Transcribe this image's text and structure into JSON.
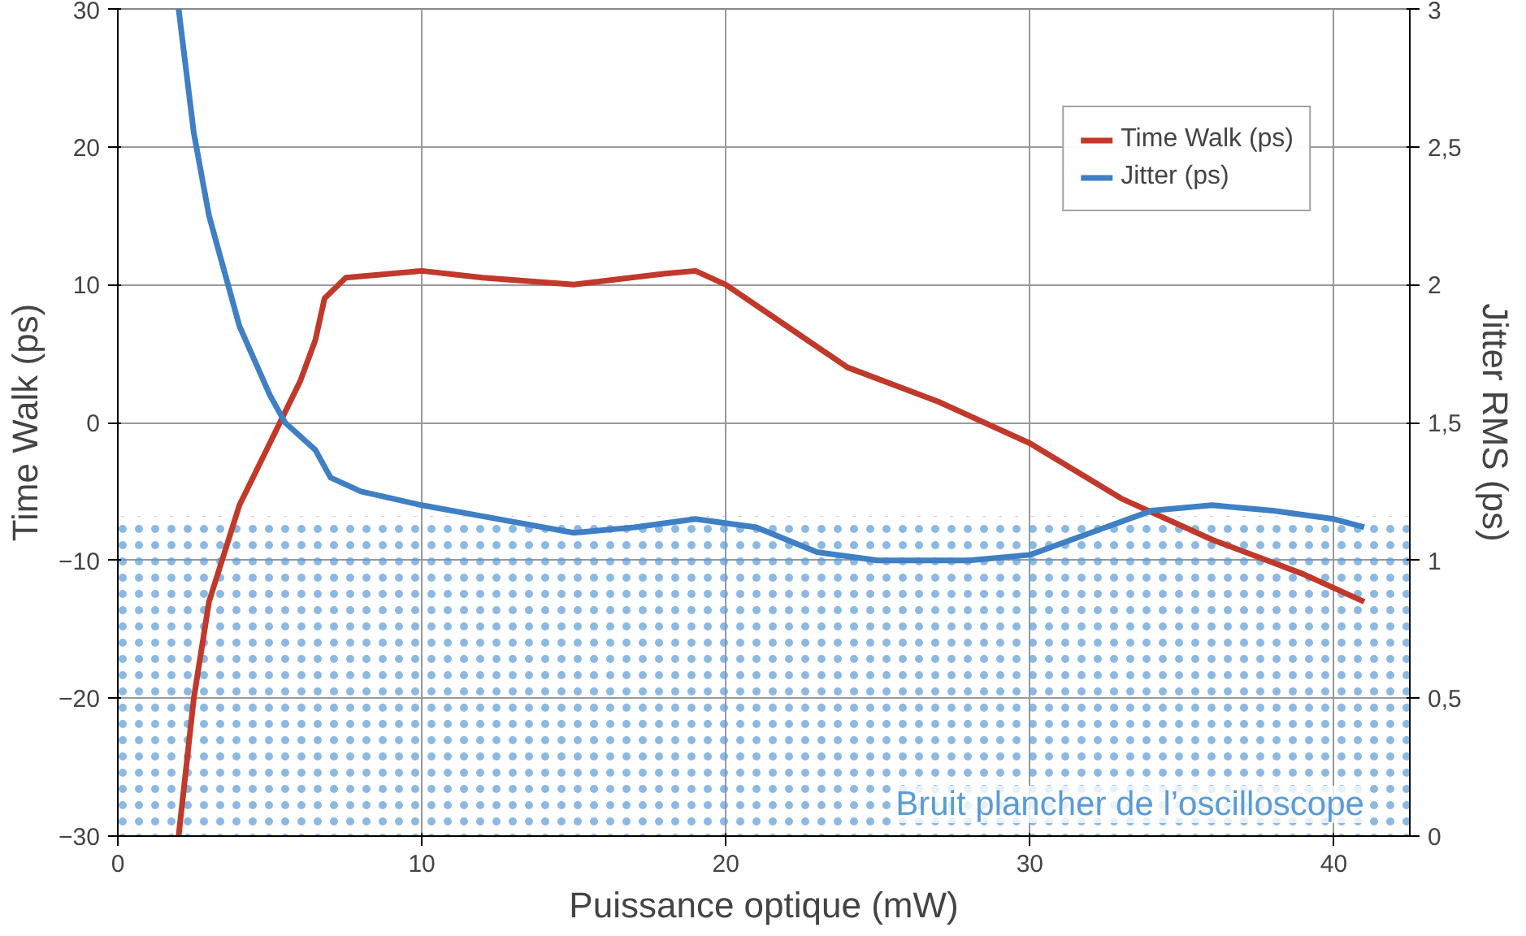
{
  "chart_data": {
    "type": "line",
    "xlabel": "Puissance optique (mW)",
    "ylabel": "Time Walk (ps)",
    "y2label": "Jitter RMS (ps)",
    "xlim": [
      0,
      42.5
    ],
    "xticks": [
      0,
      10,
      20,
      30,
      40
    ],
    "ylim": [
      -30,
      30
    ],
    "yticks": [
      -30,
      -20,
      -10,
      0,
      10,
      20,
      30
    ],
    "y2lim": [
      0,
      3
    ],
    "y2ticks": [
      {
        "value": 0,
        "label": "0"
      },
      {
        "value": 0.5,
        "label": "0,5"
      },
      {
        "value": 1,
        "label": "1"
      },
      {
        "value": 1.5,
        "label": "1,5"
      },
      {
        "value": 2,
        "label": "2"
      },
      {
        "value": 2.5,
        "label": "2,5"
      },
      {
        "value": 3,
        "label": "3"
      }
    ],
    "grid": true,
    "legend": "top right",
    "line_style": "solid",
    "marker": "none",
    "series": [
      {
        "name": "Time Walk (ps)",
        "color": "#c0392b",
        "x": [
          2,
          2.5,
          3,
          4,
          5,
          6,
          6.5,
          6.8,
          7.5,
          10,
          12,
          15,
          18,
          19,
          20,
          22,
          24,
          27,
          30,
          33,
          36,
          39,
          41
        ],
        "values": [
          -30,
          -20,
          -13,
          -6,
          -1.5,
          3,
          6,
          9,
          10.5,
          11,
          10.5,
          10,
          10.8,
          11,
          10,
          7,
          4,
          1.5,
          -1.5,
          -5.5,
          -8.5,
          -11,
          -13
        ]
      },
      {
        "name": "Jitter (ps)",
        "color": "#3f7fc4",
        "axis": "y2",
        "x": [
          2,
          2.5,
          3,
          4,
          5,
          5.5,
          6.5,
          7,
          8,
          10,
          12,
          15,
          17,
          19,
          21,
          23,
          25,
          28,
          30,
          32,
          34,
          36,
          38,
          40,
          41
        ],
        "values": [
          3.0,
          2.55,
          2.25,
          1.85,
          1.6,
          1.5,
          1.4,
          1.3,
          1.25,
          1.2,
          1.16,
          1.1,
          1.12,
          1.15,
          1.12,
          1.03,
          1.0,
          1.0,
          1.02,
          1.1,
          1.18,
          1.2,
          1.18,
          1.15,
          1.12
        ]
      }
    ],
    "bands": [
      {
        "axis": "y2",
        "from": 0,
        "to": 1.16,
        "label": "Bruit plancher de l’oscilloscope",
        "color": "#5b9bd5"
      }
    ]
  }
}
